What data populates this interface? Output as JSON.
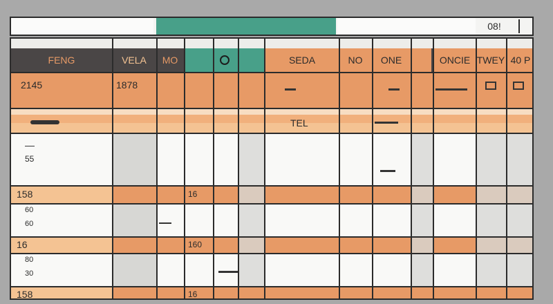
{
  "toolbar": {
    "field_value": "",
    "cell_ref": "08!"
  },
  "header": {
    "columns": [
      "FENG",
      "VELA",
      "MO",
      "",
      "",
      "SEDA",
      "NO",
      "ONE",
      "ONCIE",
      "TWEY",
      "40 P"
    ]
  },
  "rows": {
    "r1": {
      "c0": "2145",
      "c1": "1878"
    },
    "r2": {
      "c5": "TEL"
    },
    "r3": {
      "c0a": "—",
      "c0b": "55"
    },
    "r4": {
      "c0": "158",
      "c3": "16"
    },
    "r5": {
      "c0a": "60",
      "c0b": "60"
    },
    "r6": {
      "c0": "16",
      "c3": "160"
    },
    "r7": {
      "c0a": "80",
      "c0b": "30"
    },
    "r8": {
      "c0": "158",
      "c3": "16"
    }
  },
  "colors": {
    "orange": "#e79a66",
    "orange_light": "#f4c393",
    "orange_pale": "#f7ddc2",
    "teal": "#48a089",
    "header_dark": "#4a4646",
    "grey_cell": "#d7d7d4",
    "white_cell": "#f9f9f7"
  }
}
